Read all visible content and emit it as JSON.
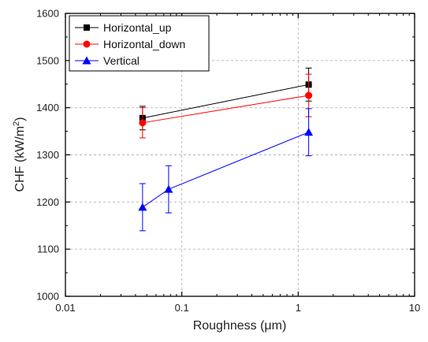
{
  "chart_data": {
    "type": "scatter",
    "title": "",
    "xlabel": "Roughness (μm)",
    "ylabel_main": "CHF (kW/m",
    "ylabel_sup": "2",
    "ylabel_end": ")",
    "xscale": "log",
    "xlim": [
      0.01,
      10
    ],
    "ylim": [
      1000,
      1600
    ],
    "x_ticks": [
      0.01,
      0.1,
      1,
      10
    ],
    "x_tick_labels": [
      "0.01",
      "0.1",
      "1",
      "10"
    ],
    "y_ticks": [
      1000,
      1100,
      1200,
      1300,
      1400,
      1500,
      1600
    ],
    "y_tick_labels": [
      "1000",
      "1100",
      "1200",
      "1300",
      "1400",
      "1500",
      "1600"
    ],
    "grid": true,
    "legend_position": "top-left",
    "series": [
      {
        "name": "Horizontal_up",
        "color": "#000000",
        "marker": "square",
        "x": [
          0.046,
          1.23
        ],
        "y": [
          1378,
          1449
        ],
        "yerr": [
          25,
          35
        ]
      },
      {
        "name": "Horizontal_down",
        "color": "#ff0000",
        "marker": "circle",
        "x": [
          0.046,
          1.23
        ],
        "y": [
          1368,
          1426
        ],
        "yerr": [
          32,
          45
        ]
      },
      {
        "name": "Vertical",
        "color": "#0000ff",
        "marker": "triangle",
        "x": [
          0.046,
          0.077,
          1.23
        ],
        "y": [
          1189,
          1227,
          1348
        ],
        "yerr": [
          50,
          50,
          50
        ]
      }
    ]
  }
}
